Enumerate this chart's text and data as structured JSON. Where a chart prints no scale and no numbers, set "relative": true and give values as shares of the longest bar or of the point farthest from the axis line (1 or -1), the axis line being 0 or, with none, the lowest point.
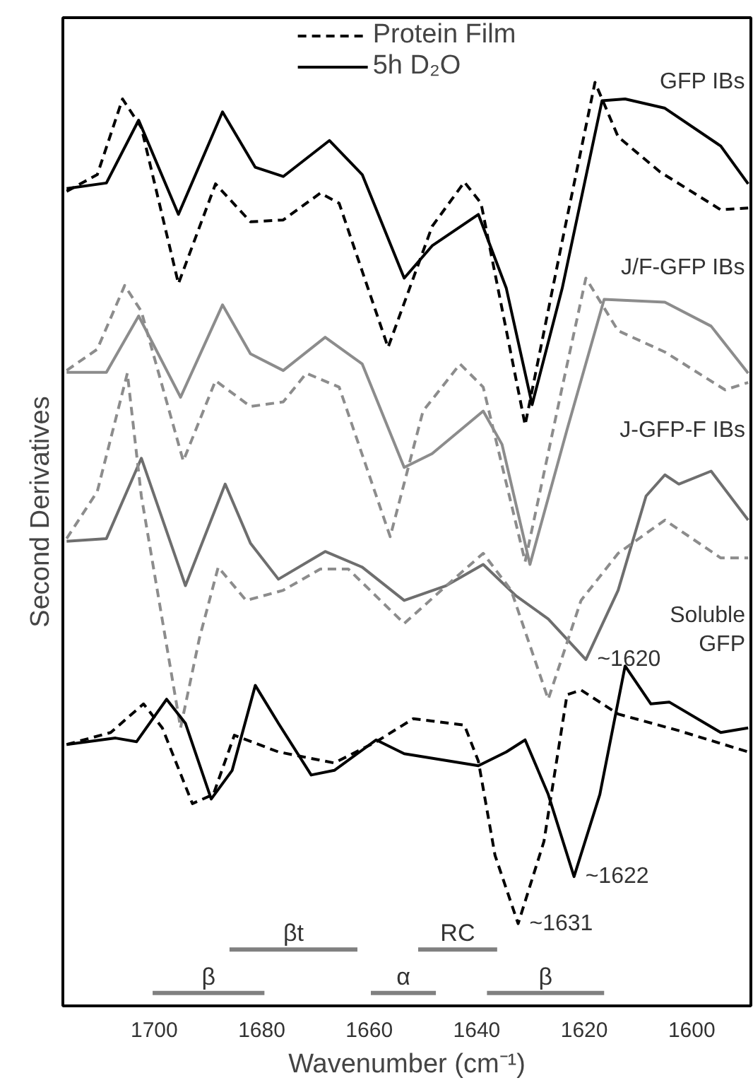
{
  "chart_data": {
    "type": "line",
    "relative": true,
    "xlabel": "Wavenumber (cm⁻¹)",
    "ylabel": "Second Derivatives",
    "xlim": [
      1717,
      1589
    ],
    "xticks": [
      1700,
      1680,
      1660,
      1640,
      1620,
      1600
    ],
    "legend": "top",
    "series": [
      {
        "name": "5h D₂O",
        "color": "#000000",
        "line_style": "solid",
        "x": [
          1716.3,
          1708.9,
          1702.9,
          1695.5,
          1687.3,
          1681.2,
          1676.0,
          1667.4,
          1661.3,
          1653.5,
          1648.3,
          1639.7,
          1634.5,
          1629.7,
          1624.1,
          1616.7,
          1612.4,
          1605.0,
          1594.6,
          1589.5
        ],
        "values": [
          0.885,
          0.891,
          0.959,
          0.857,
          0.968,
          0.908,
          0.898,
          0.937,
          0.9,
          0.788,
          0.823,
          0.857,
          0.777,
          0.651,
          0.777,
          0.98,
          0.982,
          0.972,
          0.931,
          0.89
        ]
      },
      {
        "name": "Protein Film",
        "color": "#000000",
        "line_style": "dashed",
        "x": [
          1716.3,
          1710.6,
          1705.9,
          1702.4,
          1695.5,
          1688.6,
          1682.1,
          1676.0,
          1669.1,
          1665.6,
          1656.5,
          1648.3,
          1642.3,
          1639.2,
          1631.0,
          1624.1,
          1618.0,
          1613.7,
          1605.9,
          1594.6,
          1589.5
        ],
        "values": [
          0.882,
          0.9,
          0.982,
          0.951,
          0.782,
          0.89,
          0.849,
          0.851,
          0.88,
          0.869,
          0.713,
          0.844,
          0.892,
          0.869,
          0.629,
          0.828,
          1.0,
          0.941,
          0.903,
          0.862,
          0.864
        ]
      },
      {
        "color": "#8c8c8c",
        "line_style": "solid",
        "x": [
          1716.3,
          1708.9,
          1702.9,
          1695.1,
          1687.3,
          1682.1,
          1676.0,
          1668.2,
          1661.3,
          1653.5,
          1648.3,
          1638.8,
          1635.3,
          1630.1,
          1623.2,
          1616.3,
          1605.0,
          1596.4,
          1589.5
        ],
        "values": [
          0.686,
          0.686,
          0.747,
          0.659,
          0.759,
          0.706,
          0.688,
          0.724,
          0.695,
          0.583,
          0.598,
          0.644,
          0.608,
          0.478,
          0.624,
          0.765,
          0.762,
          0.736,
          0.685
        ]
      },
      {
        "color": "#8c8c8c",
        "line_style": "dashed",
        "x": [
          1716.3,
          1710.6,
          1705.5,
          1702.4,
          1694.6,
          1688.6,
          1682.1,
          1676.0,
          1671.7,
          1665.6,
          1656.1,
          1650.0,
          1643.1,
          1638.8,
          1631.0,
          1624.1,
          1619.7,
          1613.7,
          1605.0,
          1593.8,
          1589.5
        ],
        "values": [
          0.688,
          0.711,
          0.78,
          0.752,
          0.59,
          0.677,
          0.649,
          0.654,
          0.685,
          0.67,
          0.508,
          0.644,
          0.695,
          0.67,
          0.481,
          0.67,
          0.788,
          0.731,
          0.708,
          0.667,
          0.675
        ]
      },
      {
        "color": "#6e6e6e",
        "line_style": "solid",
        "x": [
          1716.3,
          1708.9,
          1702.4,
          1694.2,
          1686.8,
          1682.1,
          1676.9,
          1668.2,
          1661.3,
          1653.5,
          1645.7,
          1638.8,
          1632.7,
          1626.7,
          1619.7,
          1613.7,
          1608.5,
          1605.0,
          1602.4,
          1596.4,
          1589.5
        ],
        "values": [
          0.503,
          0.506,
          0.593,
          0.455,
          0.565,
          0.501,
          0.462,
          0.492,
          0.475,
          0.439,
          0.455,
          0.478,
          0.444,
          0.419,
          0.375,
          0.45,
          0.552,
          0.575,
          0.565,
          0.579,
          0.526
        ]
      },
      {
        "color": "#8c8c8c",
        "line_style": "dashed",
        "x": [
          1716.3,
          1710.6,
          1705.0,
          1702.4,
          1695.1,
          1691.6,
          1688.1,
          1682.9,
          1676.0,
          1669.1,
          1663.9,
          1653.5,
          1646.6,
          1638.8,
          1633.6,
          1626.7,
          1620.6,
          1613.7,
          1605.0,
          1594.6,
          1589.5
        ],
        "values": [
          0.506,
          0.557,
          0.685,
          0.552,
          0.301,
          0.398,
          0.475,
          0.439,
          0.45,
          0.473,
          0.473,
          0.414,
          0.45,
          0.49,
          0.45,
          0.332,
          0.439,
          0.49,
          0.526,
          0.485,
          0.485
        ]
      },
      {
        "color": "#000000",
        "line_style": "solid",
        "x": [
          1716.3,
          1707.2,
          1703.3,
          1697.7,
          1694.2,
          1689.4,
          1685.5,
          1681.2,
          1676.9,
          1670.8,
          1666.5,
          1658.7,
          1653.5,
          1639.7,
          1634.5,
          1631.0,
          1626.7,
          1621.9,
          1617.1,
          1612.4,
          1607.6,
          1604.2,
          1594.6,
          1589.5
        ],
        "values": [
          0.283,
          0.29,
          0.286,
          0.332,
          0.306,
          0.224,
          0.255,
          0.347,
          0.306,
          0.25,
          0.255,
          0.288,
          0.273,
          0.26,
          0.275,
          0.288,
          0.229,
          0.14,
          0.229,
          0.368,
          0.327,
          0.329,
          0.296,
          0.301
        ]
      },
      {
        "color": "#000000",
        "line_style": "dashed",
        "x": [
          1716.3,
          1708.1,
          1702.0,
          1698.5,
          1692.9,
          1689.0,
          1685.1,
          1676.9,
          1666.5,
          1658.7,
          1651.8,
          1642.3,
          1639.7,
          1636.6,
          1632.3,
          1627.5,
          1623.2,
          1620.6,
          1613.7,
          1602.4,
          1589.5
        ],
        "values": [
          0.283,
          0.296,
          0.327,
          0.301,
          0.219,
          0.229,
          0.293,
          0.275,
          0.263,
          0.286,
          0.311,
          0.304,
          0.265,
          0.163,
          0.089,
          0.178,
          0.337,
          0.342,
          0.316,
          0.298,
          0.275
        ]
      },
      {
        "name": "β",
        "color": "#808080",
        "line_style": "solid",
        "x": [
          1700.3,
          1679.5
        ],
        "values": [
          0.014,
          0.014
        ]
      },
      {
        "name": "βt",
        "color": "#808080",
        "line_style": "solid",
        "x": [
          1686.0,
          1662.2
        ],
        "values": [
          0.061,
          0.061
        ]
      },
      {
        "name": "α",
        "color": "#808080",
        "line_style": "solid",
        "x": [
          1659.7,
          1647.6
        ],
        "values": [
          0.014,
          0.014
        ]
      },
      {
        "name": "RC",
        "color": "#808080",
        "line_style": "solid",
        "x": [
          1650.9,
          1636.2
        ],
        "values": [
          0.061,
          0.061
        ]
      },
      {
        "name": "β",
        "color": "#808080",
        "line_style": "solid",
        "x": [
          1638.1,
          1616.3
        ],
        "values": [
          0.014,
          0.014
        ]
      }
    ],
    "annotations": [
      "GFP IBs",
      "J/F-GFP IBs",
      "J-GFP-F IBs",
      "Soluble\nGFP",
      {
        "text": "~1620",
        "x": 1619.7,
        "y": 0.375
      },
      {
        "text": "~1622",
        "x": 1621.9,
        "y": 0.14
      },
      {
        "text": "~1631",
        "x": 1632.3,
        "y": 0.089
      }
    ]
  }
}
